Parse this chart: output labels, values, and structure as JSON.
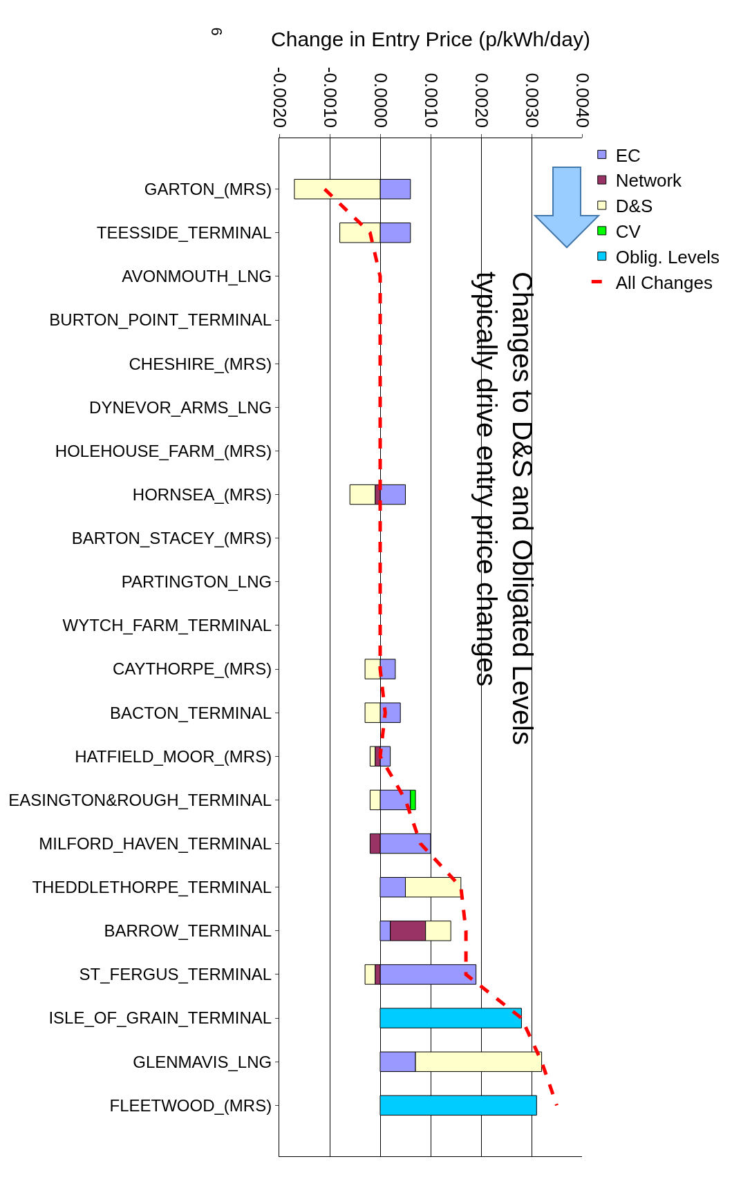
{
  "chart_data": {
    "type": "bar",
    "orientation": "horizontal",
    "stacked": true,
    "xlabel": "Change in Entry Price (p/kWh/day)",
    "categories": [
      "GARTON_(MRS)",
      "TEESSIDE_TERMINAL",
      "AVONMOUTH_LNG",
      "BURTON_POINT_TERMINAL",
      "CHESHIRE_(MRS)",
      "DYNEVOR_ARMS_LNG",
      "HOLEHOUSE_FARM_(MRS)",
      "HORNSEA_(MRS)",
      "BARTON_STACEY_(MRS)",
      "PARTINGTON_LNG",
      "WYTCH_FARM_TERMINAL",
      "CAYTHORPE_(MRS)",
      "BACTON_TERMINAL",
      "HATFIELD_MOOR_(MRS)",
      "EASINGTON&ROUGH_TERMINAL",
      "MILFORD_HAVEN_TERMINAL",
      "THEDDLETHORPE_TERMINAL",
      "BARROW_TERMINAL",
      "ST_FERGUS_TERMINAL",
      "ISLE_OF_GRAIN_TERMINAL",
      "GLENMAVIS_LNG",
      "FLEETWOOD_(MRS)"
    ],
    "series": [
      {
        "name": "EC",
        "color": "#9999ff",
        "values": [
          0.0006,
          0.0006,
          null,
          null,
          null,
          null,
          null,
          0.0005,
          null,
          null,
          null,
          0.0003,
          0.0004,
          0.0002,
          0.0006,
          0.001,
          0.0005,
          0.0002,
          0.0019,
          null,
          0.0007,
          null
        ]
      },
      {
        "name": "Network",
        "color": "#993366",
        "values": [
          null,
          null,
          null,
          null,
          null,
          null,
          null,
          -0.0001,
          null,
          null,
          null,
          null,
          null,
          -0.0001,
          null,
          -0.0002,
          null,
          0.0007,
          -0.0001,
          null,
          null,
          null
        ]
      },
      {
        "name": "D&S",
        "color": "#ffffcc",
        "values": [
          -0.0017,
          -0.0008,
          null,
          null,
          null,
          null,
          null,
          -0.0005,
          null,
          null,
          null,
          -0.0003,
          -0.0003,
          -0.0001,
          -0.0002,
          null,
          0.0011,
          0.0005,
          -0.0002,
          null,
          0.0025,
          null
        ]
      },
      {
        "name": "CV",
        "color": "#00ff00",
        "values": [
          null,
          null,
          null,
          null,
          null,
          null,
          null,
          null,
          null,
          null,
          null,
          null,
          null,
          null,
          0.0001,
          null,
          null,
          null,
          null,
          null,
          null,
          null
        ]
      },
      {
        "name": "Oblig. Levels",
        "color": "#00ccff",
        "values": [
          null,
          null,
          null,
          null,
          null,
          null,
          null,
          null,
          null,
          null,
          null,
          null,
          null,
          null,
          null,
          null,
          null,
          null,
          null,
          0.0028,
          null,
          0.0031
        ]
      },
      {
        "name": "All Changes",
        "type": "line",
        "color": "#ff0000",
        "line_style": "dashed",
        "marker": "none",
        "values": [
          -0.0011,
          -0.0002,
          0,
          0,
          0,
          0,
          0,
          0,
          0,
          0,
          0,
          0,
          0.0001,
          0,
          0.0005,
          0.0008,
          0.0016,
          0.0017,
          0.0017,
          0.0028,
          0.0032,
          0.0035
        ]
      }
    ],
    "xlim": [
      -0.002,
      0.004
    ],
    "xticks": [
      {
        "value": -0.002,
        "label": "-0.0020"
      },
      {
        "value": -0.001,
        "label": "-0.0010"
      },
      {
        "value": 0,
        "label": "0.0000"
      },
      {
        "value": 0.001,
        "label": "0.0010"
      },
      {
        "value": 0.002,
        "label": "0.0020"
      },
      {
        "value": 0.003,
        "label": "0.0030"
      },
      {
        "value": 0.004,
        "label": "0.0040"
      }
    ],
    "grid": "x",
    "legend": "right",
    "annotations": [
      "Changes to D&S and Obligated Levels\ntypically drive entry price changes",
      "6"
    ]
  }
}
